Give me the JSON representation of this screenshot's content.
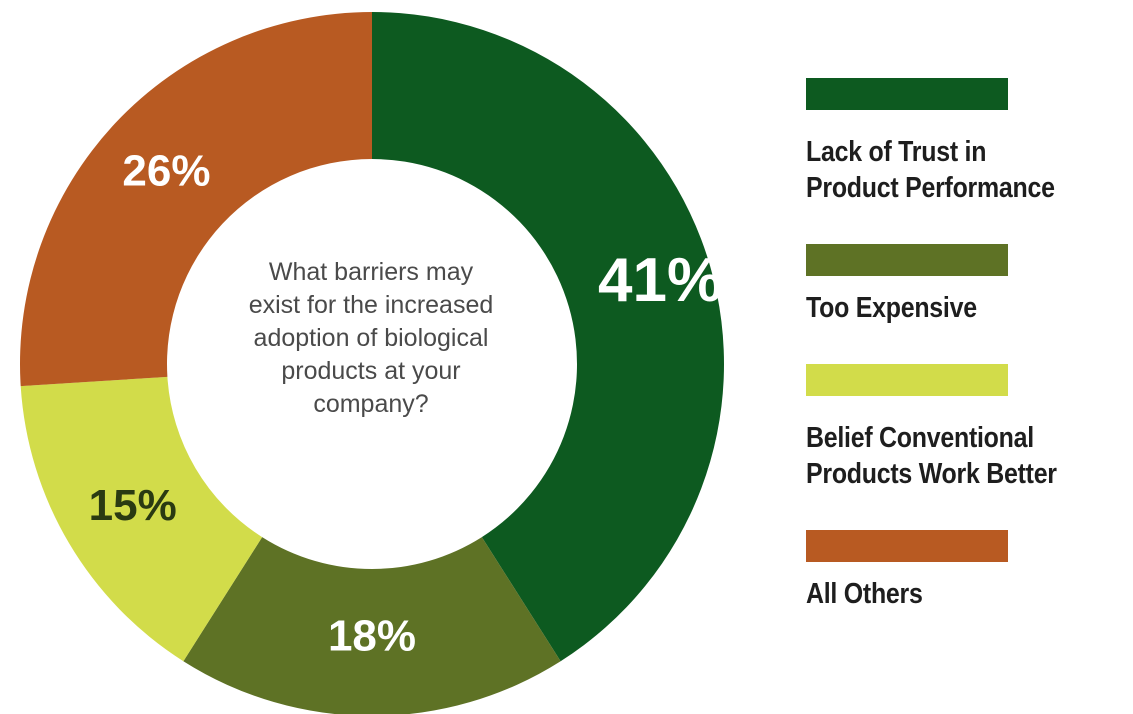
{
  "chart_data": {
    "type": "pie",
    "donut": true,
    "title": "",
    "center_text": "What barriers may exist for the increased adoption of biological products at your company?",
    "center_lines": [
      "What barriers may",
      "exist for the increased",
      "adoption of biological",
      "products at your",
      "company?"
    ],
    "categories": [
      "Lack of Trust in Product Performance",
      "Too Expensive",
      "Belief Conventional Products Work Better",
      "All Others"
    ],
    "values": [
      41,
      18,
      15,
      26
    ],
    "value_labels": [
      "41%",
      "18%",
      "15%",
      "26%"
    ],
    "colors": [
      "#0d5a20",
      "#5e7225",
      "#d2dc4a",
      "#b85a22"
    ],
    "label_colors": [
      "#ffffff",
      "#ffffff",
      "#2a3a12",
      "#ffffff"
    ],
    "legend_placement": "right",
    "legend": [
      {
        "lines": [
          "Lack of Trust in",
          "Product Performance"
        ],
        "color": "#0d5a20"
      },
      {
        "lines": [
          "Too Expensive"
        ],
        "color": "#5e7225"
      },
      {
        "lines": [
          "Belief Conventional",
          "Products Work Better"
        ],
        "color": "#d2dc4a"
      },
      {
        "lines": [
          "All Others"
        ],
        "color": "#b85a22"
      }
    ]
  }
}
